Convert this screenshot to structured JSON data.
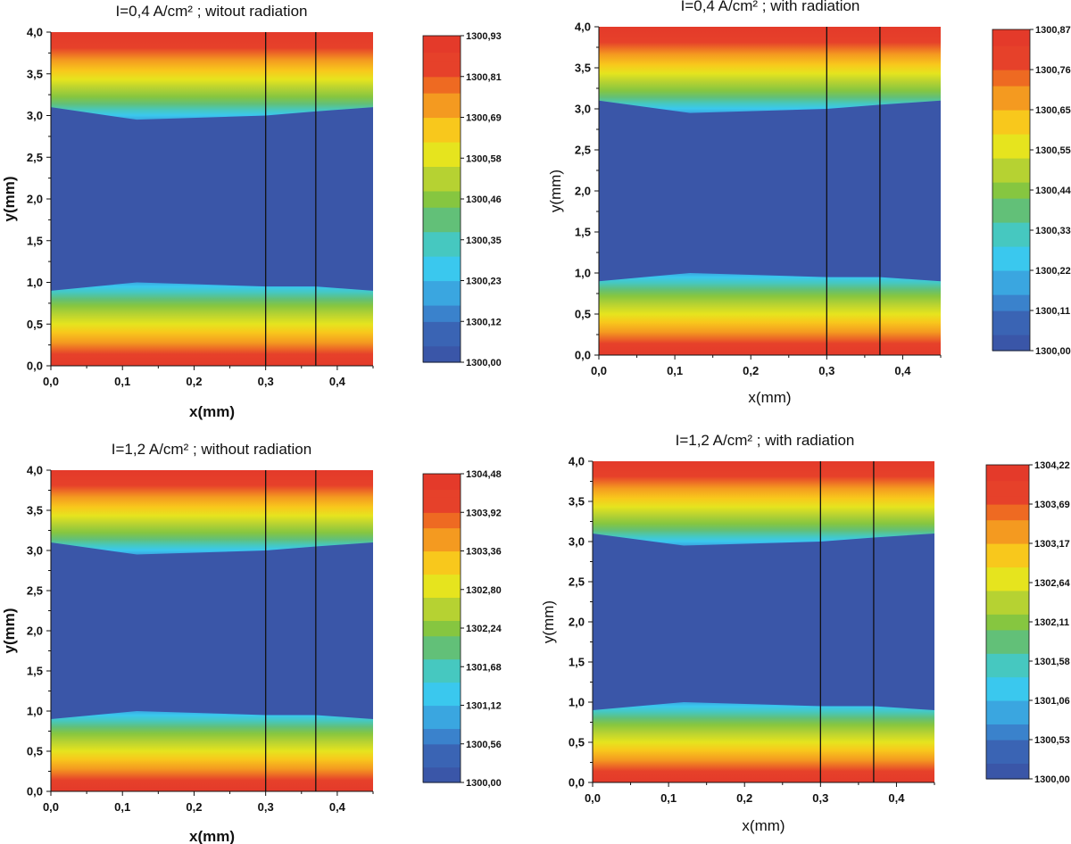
{
  "figure": {
    "colors": [
      "#3a56a8",
      "#3a64b4",
      "#3a82cc",
      "#3aa6e0",
      "#3ac8ee",
      "#46c8c0",
      "#62c078",
      "#86c640",
      "#b6d232",
      "#e6e41e",
      "#f8c81c",
      "#f49a20",
      "#ee6a22",
      "#e6412a",
      "#e43a2a"
    ],
    "divider_color": "#111111"
  },
  "chart_data": [
    {
      "type": "heatmap",
      "title": "I=0,4 A/cm² ; witout radiation",
      "xlabel": "x(mm)",
      "ylabel": "y(mm)",
      "label_bold": true,
      "xlim": [
        0,
        0.45
      ],
      "ylim": [
        0,
        4.0
      ],
      "xticks": [
        0.0,
        0.1,
        0.2,
        0.3,
        0.4
      ],
      "xtick_labels": [
        "0,0",
        "0,1",
        "0,2",
        "0,3",
        "0,4"
      ],
      "yticks": [
        0.0,
        0.5,
        1.0,
        1.5,
        2.0,
        2.5,
        3.0,
        3.5,
        4.0
      ],
      "ytick_labels": [
        "0,0",
        "0,5",
        "1,0",
        "1,5",
        "2,0",
        "2,5",
        "3,0",
        "3,5",
        "4,0"
      ],
      "colorbar": {
        "min": 1300.0,
        "max": 1300.93,
        "tick_labels": [
          "1300,00",
          "1300,12",
          "1300,23",
          "1300,35",
          "1300,46",
          "1300,58",
          "1300,69",
          "1300,81",
          "1300,93"
        ]
      },
      "region_lines_x": [
        0.3,
        0.37
      ],
      "interface_y": {
        "x": [
          0.0,
          0.12,
          0.3,
          0.37,
          0.45
        ],
        "lower": [
          0.9,
          1.0,
          0.95,
          0.95,
          0.9
        ],
        "upper": [
          3.1,
          2.95,
          3.0,
          3.05,
          3.1
        ]
      }
    },
    {
      "type": "heatmap",
      "title": "I=0,4 A/cm² ; with radiation",
      "xlabel": "x(mm)",
      "ylabel": "y(mm)",
      "label_bold": false,
      "xlim": [
        0,
        0.45
      ],
      "ylim": [
        0,
        4.0
      ],
      "xticks": [
        0.0,
        0.1,
        0.2,
        0.3,
        0.4
      ],
      "xtick_labels": [
        "0,0",
        "0,1",
        "0,2",
        "0,3",
        "0,4"
      ],
      "yticks": [
        0.0,
        0.5,
        1.0,
        1.5,
        2.0,
        2.5,
        3.0,
        3.5,
        4.0
      ],
      "ytick_labels": [
        "0,0",
        "0,5",
        "1,0",
        "1,5",
        "2,0",
        "2,5",
        "3,0",
        "3,5",
        "4,0"
      ],
      "colorbar": {
        "min": 1300.0,
        "max": 1300.87,
        "tick_labels": [
          "1300,00",
          "1300,11",
          "1300,22",
          "1300,33",
          "1300,44",
          "1300,55",
          "1300,65",
          "1300,76",
          "1300,87"
        ]
      },
      "region_lines_x": [
        0.3,
        0.37
      ],
      "interface_y": {
        "x": [
          0.0,
          0.12,
          0.3,
          0.37,
          0.45
        ],
        "lower": [
          0.9,
          1.0,
          0.95,
          0.95,
          0.9
        ],
        "upper": [
          3.1,
          2.95,
          3.0,
          3.05,
          3.1
        ]
      }
    },
    {
      "type": "heatmap",
      "title": "I=1,2 A/cm² ; without radiation",
      "xlabel": "x(mm)",
      "ylabel": "y(mm)",
      "label_bold": true,
      "xlim": [
        0,
        0.45
      ],
      "ylim": [
        0,
        4.0
      ],
      "xticks": [
        0.0,
        0.1,
        0.2,
        0.3,
        0.4
      ],
      "xtick_labels": [
        "0,0",
        "0,1",
        "0,2",
        "0,3",
        "0,4"
      ],
      "yticks": [
        0.0,
        0.5,
        1.0,
        1.5,
        2.0,
        2.5,
        3.0,
        3.5,
        4.0
      ],
      "ytick_labels": [
        "0,0",
        "0,5",
        "1,0",
        "1,5",
        "2,0",
        "2,5",
        "3,0",
        "3,5",
        "4,0"
      ],
      "colorbar": {
        "min": 1300.0,
        "max": 1304.48,
        "tick_labels": [
          "1300,00",
          "1300,56",
          "1301,12",
          "1301,68",
          "1302,24",
          "1302,80",
          "1303,36",
          "1303,92",
          "1304,48"
        ]
      },
      "region_lines_x": [
        0.3,
        0.37
      ],
      "interface_y": {
        "x": [
          0.0,
          0.12,
          0.3,
          0.37,
          0.45
        ],
        "lower": [
          0.9,
          1.0,
          0.95,
          0.95,
          0.9
        ],
        "upper": [
          3.1,
          2.95,
          3.0,
          3.05,
          3.1
        ]
      }
    },
    {
      "type": "heatmap",
      "title": "I=1,2 A/cm² ; with radiation",
      "xlabel": "x(mm)",
      "ylabel": "y(mm)",
      "label_bold": false,
      "xlim": [
        0,
        0.45
      ],
      "ylim": [
        0,
        4.0
      ],
      "xticks": [
        0.0,
        0.1,
        0.2,
        0.3,
        0.4
      ],
      "xtick_labels": [
        "0,0",
        "0,1",
        "0,2",
        "0,3",
        "0,4"
      ],
      "yticks": [
        0.0,
        0.5,
        1.0,
        1.5,
        2.0,
        2.5,
        3.0,
        3.5,
        4.0
      ],
      "ytick_labels": [
        "0,0",
        "0,5",
        "1,0",
        "1,5",
        "2,0",
        "2,5",
        "3,0",
        "3,5",
        "4,0"
      ],
      "colorbar": {
        "min": 1300.0,
        "max": 1304.22,
        "tick_labels": [
          "1300,00",
          "1300,53",
          "1301,06",
          "1301,58",
          "1302,11",
          "1302,64",
          "1303,17",
          "1303,69",
          "1304,22"
        ]
      },
      "region_lines_x": [
        0.3,
        0.37
      ],
      "interface_y": {
        "x": [
          0.0,
          0.12,
          0.3,
          0.37,
          0.45
        ],
        "lower": [
          0.9,
          1.0,
          0.95,
          0.95,
          0.9
        ],
        "upper": [
          3.1,
          2.95,
          3.0,
          3.05,
          3.1
        ]
      }
    }
  ]
}
